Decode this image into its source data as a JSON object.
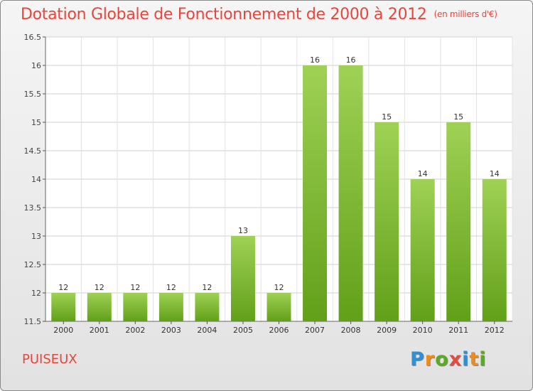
{
  "title": "Dotation Globale de Fonctionnement de 2000 à 2012",
  "subtitle": "(en milliers d'€)",
  "commune": "PUISEUX",
  "logo": {
    "text": "Proxiti",
    "letter_colors": [
      "#2e8fd4",
      "#f08a1c",
      "#5aaa22",
      "#e64b3c",
      "#2e8fd4",
      "#f08a1c",
      "#5aaa22"
    ]
  },
  "chart_data": {
    "type": "bar",
    "categories": [
      "2000",
      "2001",
      "2002",
      "2003",
      "2004",
      "2005",
      "2006",
      "2007",
      "2008",
      "2009",
      "2010",
      "2011",
      "2012"
    ],
    "values": [
      12,
      12,
      12,
      12,
      12,
      13,
      12,
      16,
      16,
      15,
      14,
      15,
      14
    ],
    "data_labels": [
      "12",
      "12",
      "12",
      "12",
      "12",
      "13",
      "12",
      "16",
      "16",
      "15",
      "14",
      "15",
      "14"
    ],
    "ylim": [
      11.5,
      16.5
    ],
    "yticks": [
      11.5,
      12,
      12.5,
      13,
      13.5,
      14,
      14.5,
      15,
      15.5,
      16,
      16.5
    ],
    "ytick_labels": [
      "11.5",
      "12",
      "12.5",
      "13",
      "13.5",
      "14",
      "14.5",
      "15",
      "15.5",
      "16",
      "16.5"
    ],
    "grid": true,
    "bar_color_light": "#9fd155",
    "bar_color_dark": "#62a019"
  }
}
